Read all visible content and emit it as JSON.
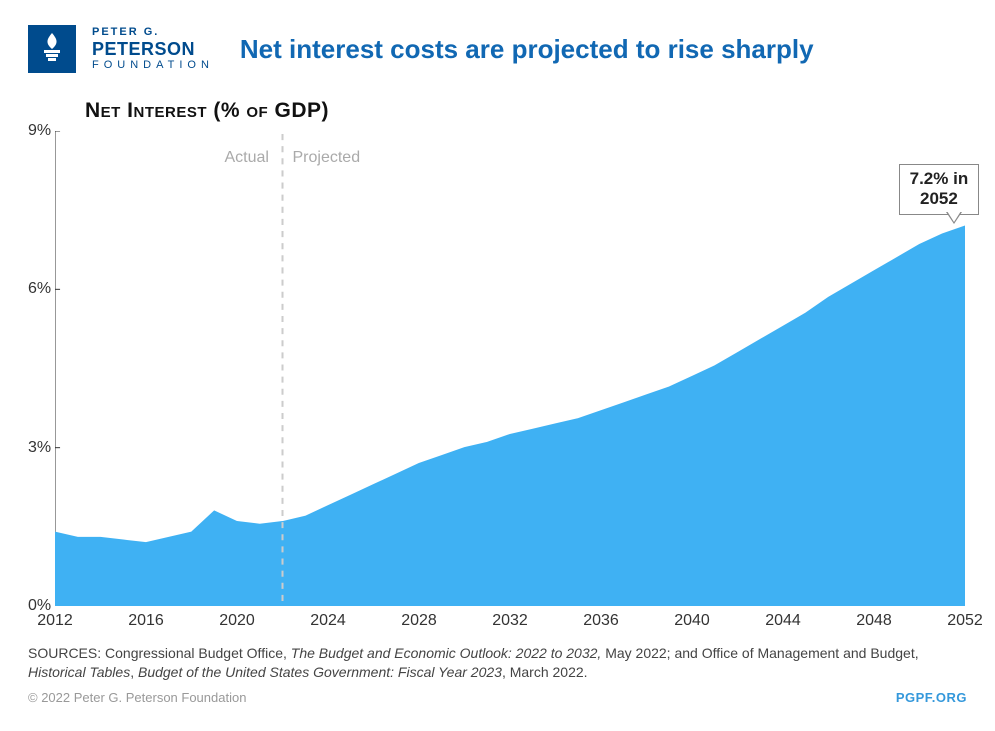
{
  "logo": {
    "line1": "PETER G.",
    "line2": "PETERSON",
    "line3": "FOUNDATION",
    "bg_color": "#004b8d",
    "torch_color": "#ffffff"
  },
  "title": "Net interest costs are projected to rise sharply",
  "chart": {
    "type": "area",
    "subtitle": "Net Interest (% of GDP)",
    "xlim": [
      2012,
      2052
    ],
    "ylim": [
      0,
      9
    ],
    "x_ticks": [
      2012,
      2016,
      2020,
      2024,
      2028,
      2032,
      2036,
      2040,
      2044,
      2048,
      2052
    ],
    "y_ticks": [
      0,
      3,
      6,
      9
    ],
    "y_tick_suffix": "%",
    "grid_color": "#cccccc",
    "axis_color": "#333333",
    "area_fill": "#3fb1f3",
    "area_stroke": "#3fb1f3",
    "divider_year": 2022,
    "divider_color": "#cccccc",
    "actual_label": "Actual",
    "projected_label": "Projected",
    "ann_label_color": "#aaaaaa",
    "callout": {
      "text_line1": "7.2% in",
      "text_line2": "2052",
      "year": 2051.5,
      "y_anchor": 7.2
    },
    "series": {
      "years": [
        2012,
        2013,
        2014,
        2015,
        2016,
        2017,
        2018,
        2019,
        2020,
        2021,
        2022,
        2023,
        2024,
        2025,
        2026,
        2027,
        2028,
        2029,
        2030,
        2031,
        2032,
        2033,
        2034,
        2035,
        2036,
        2037,
        2038,
        2039,
        2040,
        2041,
        2042,
        2043,
        2044,
        2045,
        2046,
        2047,
        2048,
        2049,
        2050,
        2051,
        2052
      ],
      "values": [
        1.4,
        1.3,
        1.3,
        1.25,
        1.2,
        1.3,
        1.4,
        1.8,
        1.6,
        1.55,
        1.6,
        1.7,
        1.9,
        2.1,
        2.3,
        2.5,
        2.7,
        2.85,
        3.0,
        3.1,
        3.25,
        3.35,
        3.45,
        3.55,
        3.7,
        3.85,
        4.0,
        4.15,
        4.35,
        4.55,
        4.8,
        5.05,
        5.3,
        5.55,
        5.85,
        6.1,
        6.35,
        6.6,
        6.85,
        7.05,
        7.2
      ]
    }
  },
  "footer": {
    "sources_prefix": "SOURCES: Congressional Budget Office, ",
    "src_em1": "The Budget and Economic Outlook: 2022 to 2032,",
    "src_mid1": " May 2022; and Office of Management and Budget, ",
    "src_em2": "Historical Tables",
    "src_mid2": ", ",
    "src_em3": "Budget of the United States Government: Fiscal Year 2023",
    "src_end": ", March 2022."
  },
  "meta": {
    "copyright": "© 2022 Peter G. Peterson Foundation",
    "link": "PGPF.ORG"
  }
}
